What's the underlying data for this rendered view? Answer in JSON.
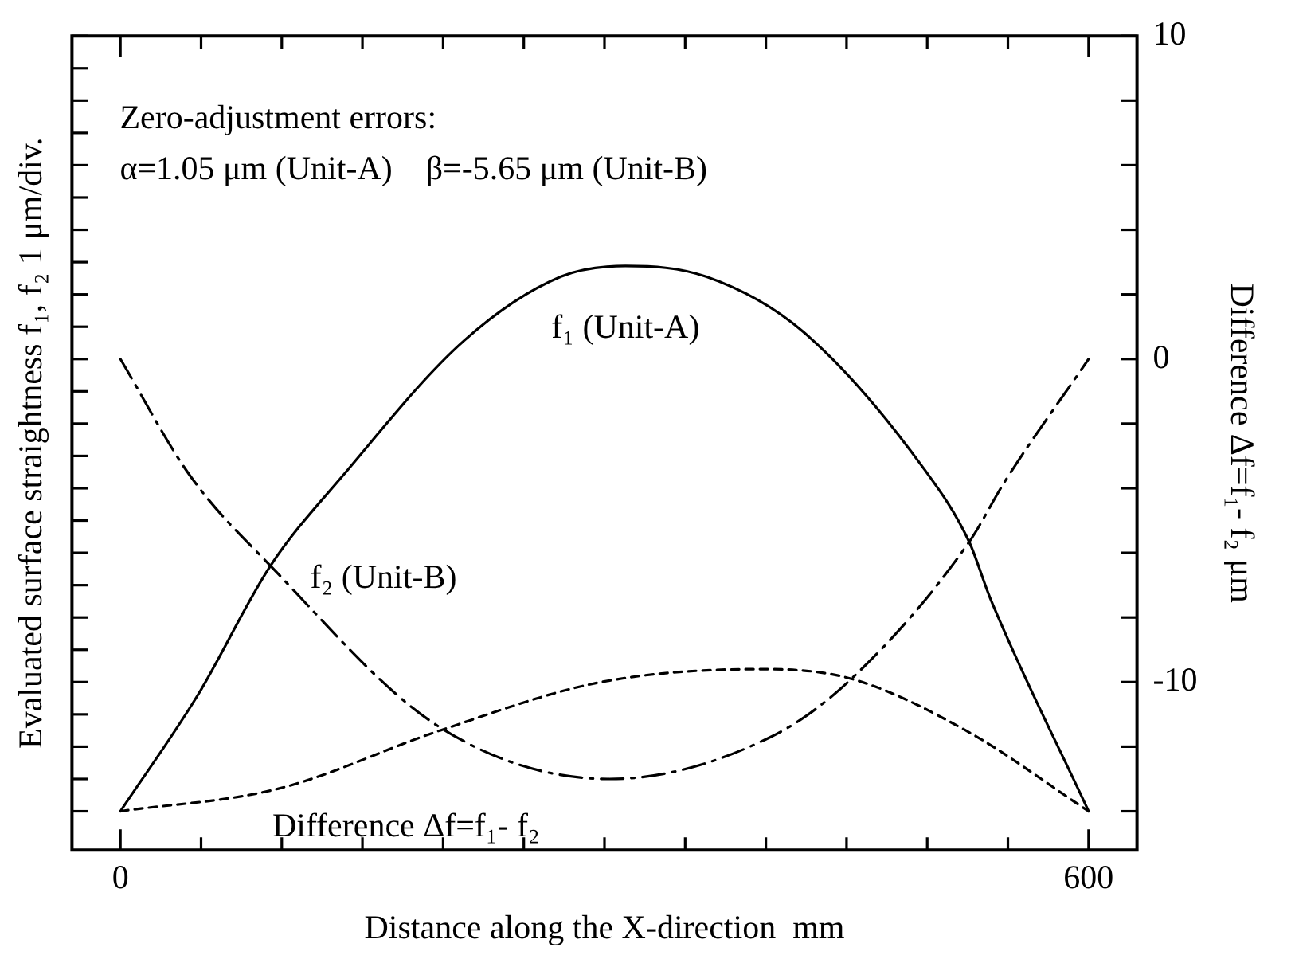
{
  "chart_data": {
    "type": "line",
    "xlabel": "Distance along the X-direction  mm",
    "ylabel": "Evaluated surface straightness f₁, f₂ 1 μm/div.",
    "y2label": "Difference Δf=f₁- f₂ μm",
    "annotations": [
      "Zero-adjustment errors:",
      "α=1.05 μm (Unit-A)    β=-5.65 μm (Unit-B)"
    ],
    "xlim": [
      -30,
      630
    ],
    "xticks": [
      0,
      {
        "value": 50,
        "label": null
      },
      {
        "value": 100,
        "label": null
      },
      {
        "value": 150,
        "label": null
      },
      {
        "value": 200,
        "label": null
      },
      {
        "value": 250,
        "label": null
      },
      {
        "value": 300,
        "label": null
      },
      {
        "value": 350,
        "label": null
      },
      {
        "value": 400,
        "label": null
      },
      {
        "value": 450,
        "label": null
      },
      {
        "value": 500,
        "label": null
      },
      {
        "value": 550,
        "label": null
      },
      600
    ],
    "y2lim": [
      -15.2,
      10
    ],
    "y2ticks": [
      {
        "value": -14,
        "label": null
      },
      {
        "value": -12,
        "label": null
      },
      -10,
      {
        "value": -8,
        "label": null
      },
      {
        "value": -6,
        "label": null
      },
      {
        "value": -4,
        "label": null
      },
      {
        "value": -2,
        "label": null
      },
      0,
      {
        "value": 2,
        "label": null
      },
      {
        "value": 4,
        "label": null
      },
      {
        "value": 6,
        "label": null
      },
      {
        "value": 8,
        "label": null
      },
      10
    ],
    "grid": false,
    "marker": "none",
    "series": [
      {
        "name": "f₁ (Unit-A)",
        "color": "#000000",
        "line_style": "solid",
        "axis": "y2",
        "x": [
          0,
          48,
          93,
          138,
          213,
          273,
          313,
          363,
          423,
          498,
          526,
          539,
          600
        ],
        "values": [
          -14,
          -10.4,
          -6.4,
          -3.6,
          0.57,
          2.55,
          2.88,
          2.55,
          0.85,
          -3.4,
          -5.66,
          -7.4,
          -14
        ]
      },
      {
        "name": "f₂ (Unit-B)",
        "color": "#000000",
        "line_style": "dashdot",
        "axis": "y2",
        "x": [
          0,
          43,
          93,
          198,
          303,
          403,
          453,
          526,
          548,
          600
        ],
        "values": [
          0,
          -3.6,
          -6.4,
          -11.4,
          -13.0,
          -11.7,
          -9.9,
          -5.66,
          -3.8,
          0
        ]
      },
      {
        "name": "Difference Δf=f₁- f₂",
        "color": "#000000",
        "line_style": "dashed",
        "axis": "y2",
        "x": [
          0,
          98,
          198,
          298,
          398,
          453,
          524,
          600
        ],
        "values": [
          -14,
          -13.3,
          -11.5,
          -10.0,
          -9.6,
          -9.9,
          -11.5,
          -14
        ]
      }
    ]
  }
}
